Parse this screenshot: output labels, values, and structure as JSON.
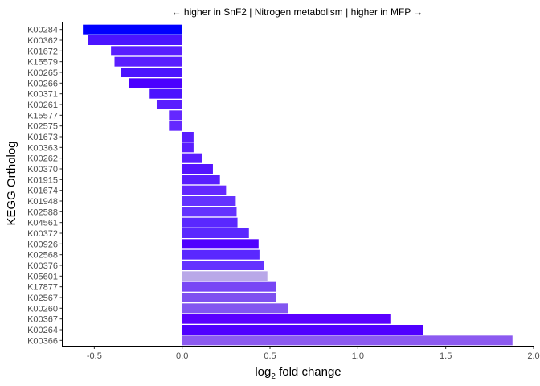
{
  "chart_data": {
    "type": "bar",
    "orientation": "horizontal",
    "title": "← higher in SnF2 | Nitrogen metabolism | higher in MFP →",
    "xlabel": "log",
    "xlabel_sub": "2",
    "xlabel_rest": " fold change",
    "ylabel": "KEGG Ortholog",
    "xlim": [
      -0.68,
      2.0
    ],
    "xticks": [
      -0.5,
      0.0,
      0.5,
      1.0,
      1.5,
      2.0
    ],
    "xtick_labels": [
      "-0.5",
      "0.0",
      "0.5",
      "1.0",
      "1.5",
      "2.0"
    ],
    "grid": false,
    "categories": [
      "K00284",
      "K00362",
      "K01672",
      "K15579",
      "K00265",
      "K00266",
      "K00371",
      "K00261",
      "K15577",
      "K02575",
      "K01673",
      "K00363",
      "K00262",
      "K00370",
      "K01915",
      "K01674",
      "K01948",
      "K02588",
      "K04561",
      "K00372",
      "K00926",
      "K02568",
      "K00376",
      "K05601",
      "K17877",
      "K02567",
      "K00260",
      "K00367",
      "K00264",
      "K00366"
    ],
    "values": [
      -0.565,
      -0.535,
      -0.405,
      -0.385,
      -0.35,
      -0.305,
      -0.185,
      -0.145,
      -0.075,
      -0.075,
      0.065,
      0.065,
      0.115,
      0.175,
      0.215,
      0.25,
      0.305,
      0.31,
      0.315,
      0.38,
      0.435,
      0.44,
      0.465,
      0.485,
      0.535,
      0.535,
      0.605,
      1.185,
      1.37,
      1.88
    ],
    "colors": [
      "#0000ff",
      "#4b14ff",
      "#5a1eff",
      "#5a1eff",
      "#4b14ff",
      "#4b00ff",
      "#4b14ff",
      "#5a1eff",
      "#6428ff",
      "#6428ff",
      "#5a1eff",
      "#5a1eff",
      "#5a1eff",
      "#5514ff",
      "#5a1eff",
      "#6428ff",
      "#6432ff",
      "#6432ff",
      "#5a28ff",
      "#5a28ff",
      "#5000ff",
      "#5a28ff",
      "#6432ff",
      "#b9a8e8",
      "#7846f5",
      "#7e50f0",
      "#8256f0",
      "#5a00ff",
      "#5000ff",
      "#8c5af0"
    ]
  }
}
